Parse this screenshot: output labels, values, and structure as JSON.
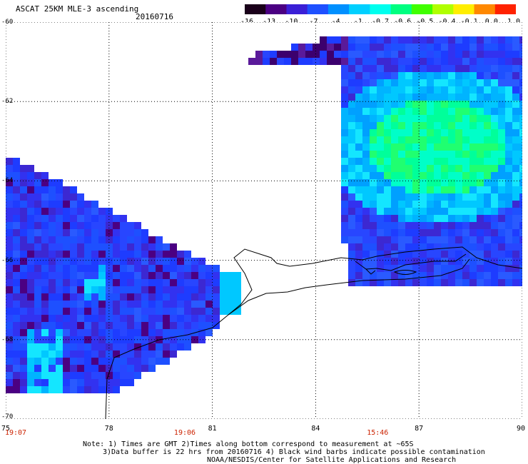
{
  "header": {
    "title": "ASCAT 25KM MLE-3 ascending",
    "date": "20160716"
  },
  "colorbar": {
    "ticks": [
      "-16",
      "-13",
      "-10",
      "-7",
      "-4",
      "-1",
      "-0.7",
      "-0.6",
      "-0.5",
      "-0.4",
      "-0.1",
      "0.0",
      "1.0"
    ],
    "colors": [
      "#1a001a",
      "#4b0082",
      "#3a1fd6",
      "#1e50ff",
      "#0090ff",
      "#00d0ff",
      "#00ffee",
      "#00ff80",
      "#40ff00",
      "#b0ff00",
      "#ffee00",
      "#ff8800",
      "#ff2200"
    ]
  },
  "map": {
    "lat_labels": [
      "-60",
      "-62",
      "-64",
      "-66",
      "-68",
      "-70"
    ],
    "lon_labels": [
      "75",
      "78",
      "81",
      "84",
      "87",
      "90"
    ],
    "time_labels": [
      {
        "lon": 75,
        "text": "19:07"
      },
      {
        "lon": 80.2,
        "text": "19:06"
      },
      {
        "lon": 85.8,
        "text": "15:46"
      }
    ],
    "land_color": "#ffffff",
    "grid_color": "#000000"
  },
  "footer": {
    "note1": "Note: 1) Times are GMT 2)Times along bottom correspond to measurement at ~65S",
    "note2": "3)Data buffer is 22 hrs from 20160716 4) Black wind barbs indicate possible contamination",
    "note3": "NOAA/NESDIS/Center for Satellite Applications and Research"
  }
}
